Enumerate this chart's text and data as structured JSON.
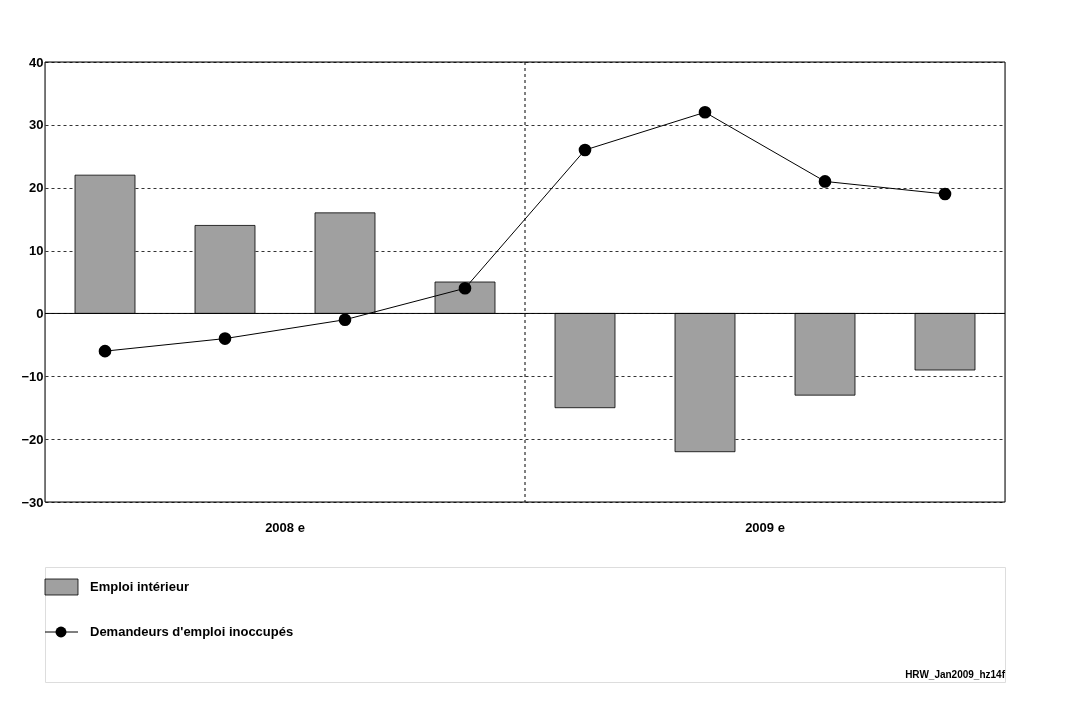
{
  "chart_data": {
    "type": "bar",
    "categories": [
      null,
      null,
      null,
      null,
      null,
      null,
      null,
      null
    ],
    "series": [
      {
        "name": "Emploi intérieur",
        "color": "#a0a0a0",
        "values": [
          22,
          14,
          16,
          5,
          -15,
          -22,
          -13,
          -9
        ]
      },
      {
        "name": "Demandeurs d'emploi inoccupés",
        "type": "line",
        "color": "#000000",
        "marker": "circle",
        "values": [
          -6,
          -4,
          -1,
          4,
          26,
          32,
          21,
          19
        ]
      }
    ],
    "ylim": [
      -30,
      40
    ],
    "yticks": [
      -30,
      -20,
      -10,
      0,
      10,
      20,
      30,
      40
    ],
    "grid": "y",
    "legend": "bottom left",
    "annotations": [
      "2008 e",
      "2009 e",
      "HRW_Jan2009_hz14f"
    ]
  }
}
